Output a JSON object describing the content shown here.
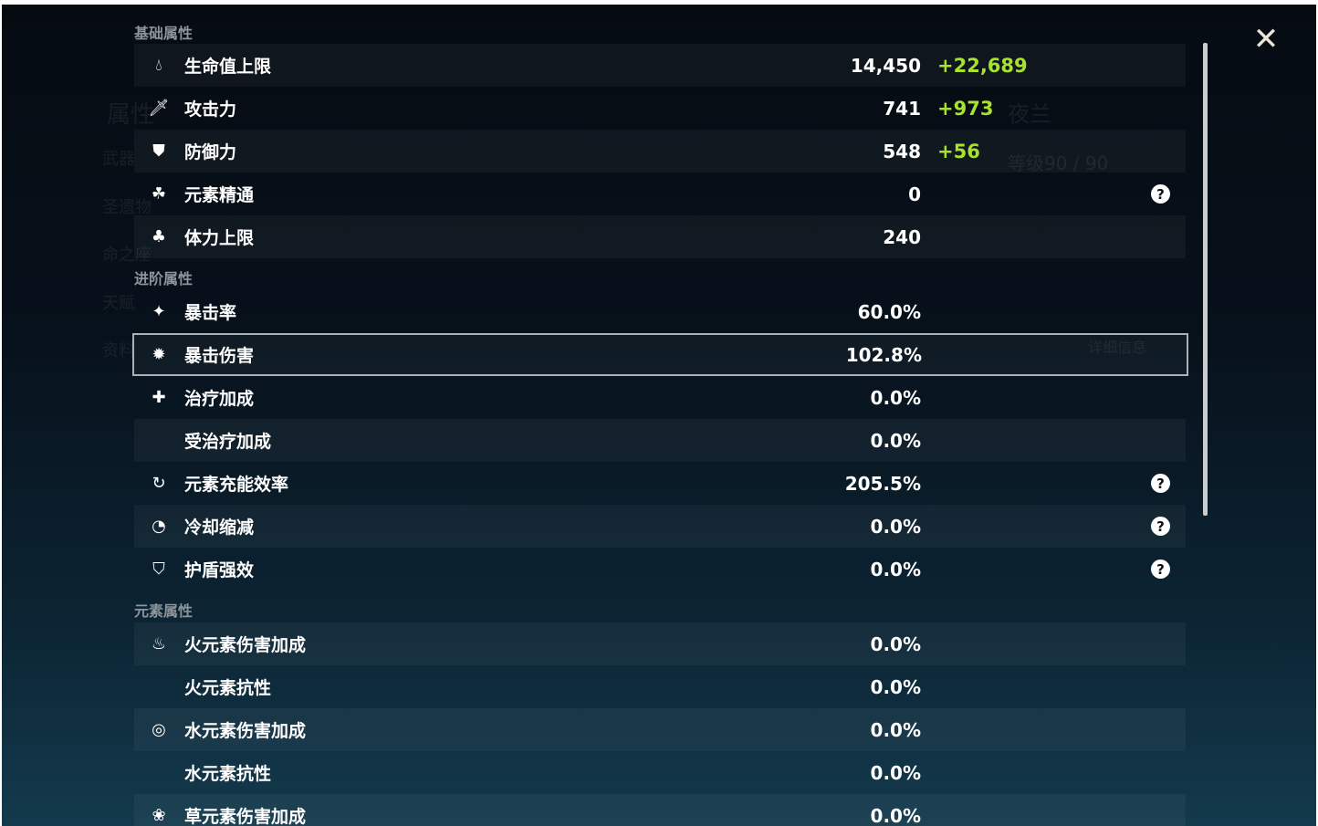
{
  "sections": {
    "basic": "基础属性",
    "advanced": "进阶属性",
    "elemental": "元素属性"
  },
  "basic": [
    {
      "icon": "hp-drop-icon",
      "label": "生命值上限",
      "value": "14,450",
      "bonus": "+22,689"
    },
    {
      "icon": "sword-icon",
      "label": "攻击力",
      "value": "741",
      "bonus": "+973"
    },
    {
      "icon": "shield-icon",
      "label": "防御力",
      "value": "548",
      "bonus": "+56"
    },
    {
      "icon": "elemental-mastery-icon",
      "label": "元素精通",
      "value": "0",
      "help": true
    },
    {
      "icon": "stamina-icon",
      "label": "体力上限",
      "value": "240"
    }
  ],
  "advanced": [
    {
      "icon": "crit-rate-icon",
      "label": "暴击率",
      "value": "60.0%"
    },
    {
      "icon": "crit-dmg-icon",
      "label": "暴击伤害",
      "value": "102.8%",
      "selected": true
    },
    {
      "icon": "healing-cross-icon",
      "label": "治疗加成",
      "value": "0.0%"
    },
    {
      "icon": "",
      "label": "受治疗加成",
      "value": "0.0%"
    },
    {
      "icon": "energy-recharge-icon",
      "label": "元素充能效率",
      "value": "205.5%",
      "help": true
    },
    {
      "icon": "cooldown-icon",
      "label": "冷却缩减",
      "value": "0.0%",
      "help": true
    },
    {
      "icon": "shield-strength-icon",
      "label": "护盾强效",
      "value": "0.0%",
      "help": true
    }
  ],
  "elemental": [
    {
      "icon": "pyro-icon",
      "label": "火元素伤害加成",
      "value": "0.0%"
    },
    {
      "icon": "",
      "label": "火元素抗性",
      "value": "0.0%"
    },
    {
      "icon": "hydro-icon",
      "label": "水元素伤害加成",
      "value": "0.0%"
    },
    {
      "icon": "",
      "label": "水元素抗性",
      "value": "0.0%"
    },
    {
      "icon": "dendro-icon",
      "label": "草元素伤害加成",
      "value": "0.0%"
    }
  ],
  "help_glyph": "?",
  "close_glyph": "✕",
  "background": {
    "character_name": "夜兰",
    "level": "等级90 / 90",
    "details_button": "详细信息",
    "menu": [
      "属性",
      "武器",
      "圣遗物",
      "命之座",
      "天赋",
      "资料"
    ]
  },
  "colors": {
    "bonus": "#a6e22e",
    "selected_border": "#a9b0b6"
  }
}
